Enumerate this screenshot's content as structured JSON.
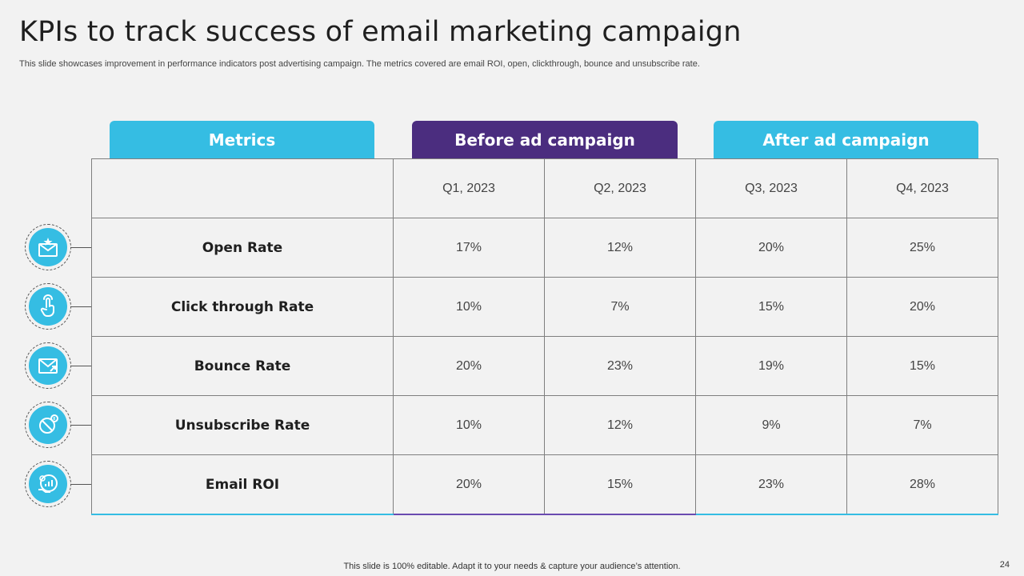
{
  "slide": {
    "title": "KPIs to track success of email marketing campaign",
    "subtitle": "This slide showcases improvement in performance indicators post advertising campaign. The metrics covered are email ROI, open, clickthrough, bounce and unsubscribe rate.",
    "footer": "This slide is 100% editable. Adapt it to your needs & capture your audience’s attention.",
    "page_number": "24"
  },
  "headers": {
    "metrics": "Metrics",
    "before": "Before ad campaign",
    "after": "After ad campaign"
  },
  "quarters": [
    "Q1, 2023",
    "Q2, 2023",
    "Q3, 2023",
    "Q4, 2023"
  ],
  "rows": [
    {
      "metric": "Open Rate",
      "values": [
        "17%",
        "12%",
        "20%",
        "25%"
      ],
      "icon": "email-star-icon"
    },
    {
      "metric": "Click through Rate",
      "values": [
        "10%",
        "7%",
        "15%",
        "20%"
      ],
      "icon": "hand-click-icon"
    },
    {
      "metric": "Bounce Rate",
      "values": [
        "20%",
        "23%",
        "19%",
        "15%"
      ],
      "icon": "email-bounce-icon"
    },
    {
      "metric": "Unsubscribe Rate",
      "values": [
        "10%",
        "12%",
        "9%",
        "7%"
      ],
      "icon": "unsubscribe-icon"
    },
    {
      "metric": "Email ROI",
      "values": [
        "20%",
        "15%",
        "23%",
        "28%"
      ],
      "icon": "roi-icon"
    }
  ],
  "colors": {
    "accent_blue": "#35bde3",
    "accent_purple": "#4b2d7f"
  }
}
